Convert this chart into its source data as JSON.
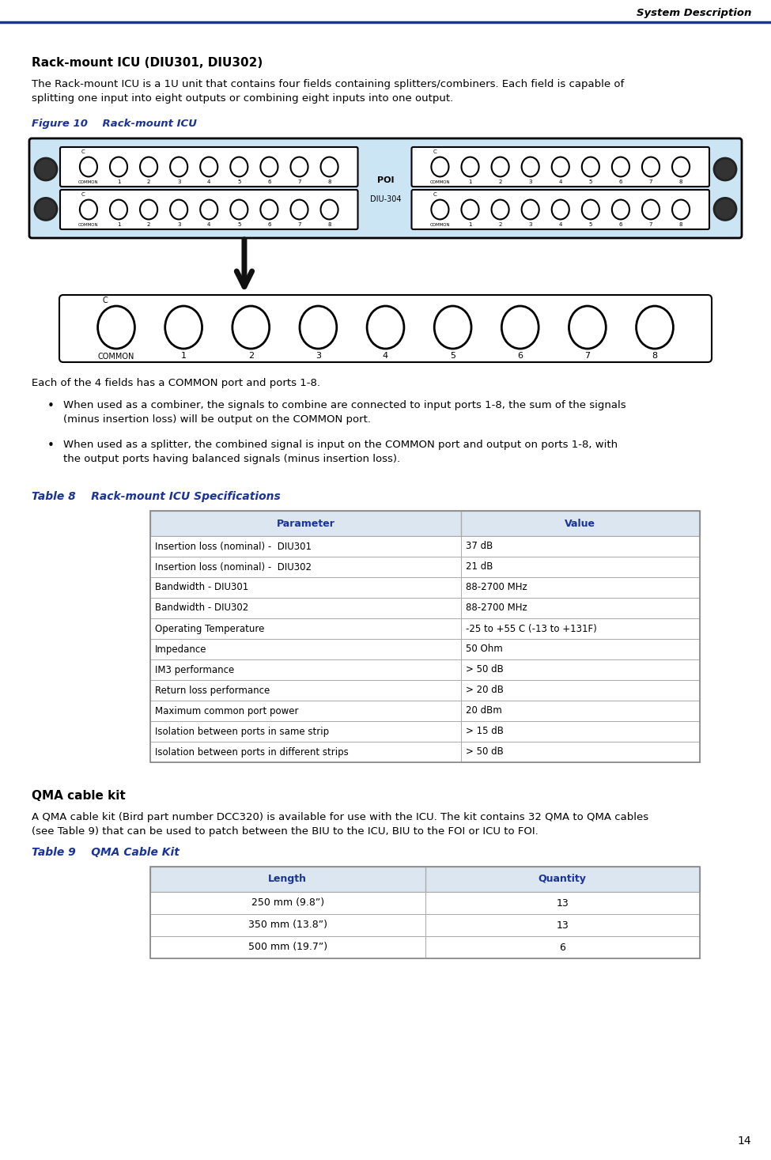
{
  "page_title": "System Description",
  "page_number": "14",
  "header_line_color": "#1a3399",
  "title_color": "#1a3399",
  "section_title": "Rack-mount ICU (DIU301, DIU302)",
  "section_body1": "The Rack-mount ICU is a 1U unit that contains four fields containing splitters/combiners. Each field is capable of",
  "section_body2": "splitting one input into eight outputs or combining eight inputs into one output.",
  "figure_label": "Figure 10    Rack-mount ICU",
  "para_text": "Each of the 4 fields has a COMMON port and ports 1-8.",
  "bullet1_line1": "When used as a combiner, the signals to combine are connected to input ports 1-8, the sum of the signals",
  "bullet1_line2": "(minus insertion loss) will be output on the COMMON port.",
  "bullet2_line1": "When used as a splitter, the combined signal is input on the COMMON port and output on ports 1-8, with",
  "bullet2_line2": "the output ports having balanced signals (minus insertion loss).",
  "table8_title": "Table 8    Rack-mount ICU Specifications",
  "table8_headers": [
    "Parameter",
    "Value"
  ],
  "table8_rows": [
    [
      "Insertion loss (nominal) -  DIU301",
      "37 dB"
    ],
    [
      "Insertion loss (nominal) -  DIU302",
      "21 dB"
    ],
    [
      "Bandwidth - DIU301",
      "88-2700 MHz"
    ],
    [
      "Bandwidth - DIU302",
      "88-2700 MHz"
    ],
    [
      "Operating Temperature",
      "-25 to +55 C (-13 to +131F)"
    ],
    [
      "Impedance",
      "50 Ohm"
    ],
    [
      "IM3 performance",
      "> 50 dB"
    ],
    [
      "Return loss performance",
      "> 20 dB"
    ],
    [
      "Maximum common port power",
      "20 dBm"
    ],
    [
      "Isolation between ports in same strip",
      "> 15 dB"
    ],
    [
      "Isolation between ports in different strips",
      "> 50 dB"
    ]
  ],
  "qma_title": "QMA cable kit",
  "qma_body1": "A QMA cable kit (Bird part number DCC320) is available for use with the ICU. The kit contains 32 QMA to QMA cables",
  "qma_body2": "(see Table 9) that can be used to patch between the BIU to the ICU, BIU to the FOI or ICU to FOI.",
  "table9_title": "Table 9    QMA Cable Kit",
  "table9_headers": [
    "Length",
    "Quantity"
  ],
  "table9_rows": [
    [
      "250 mm (9.8”)",
      "13"
    ],
    [
      "350 mm (13.8”)",
      "13"
    ],
    [
      "500 mm (19.7”)",
      "6"
    ]
  ],
  "bg_color": "#ffffff",
  "text_color": "#000000",
  "table_header_color": "#1a3399",
  "table_header_bg": "#dce6f1",
  "icu_bg_color": "#cce5f5"
}
